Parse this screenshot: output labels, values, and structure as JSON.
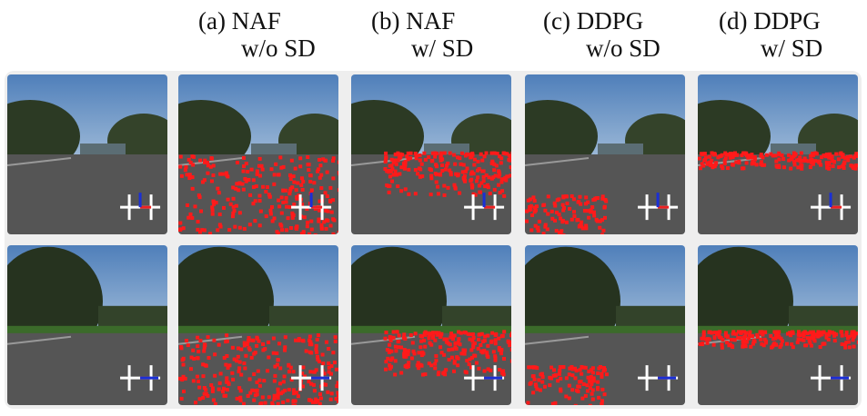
{
  "columns": [
    {
      "line1": "(a) NAF",
      "line2": "w/o SD"
    },
    {
      "line1": "(b) NAF",
      "line2": "w/ SD"
    },
    {
      "line1": "(c) DDPG",
      "line2": "w/o SD"
    },
    {
      "line1": "(d) DDPG",
      "line2": "w/ SD"
    }
  ]
}
